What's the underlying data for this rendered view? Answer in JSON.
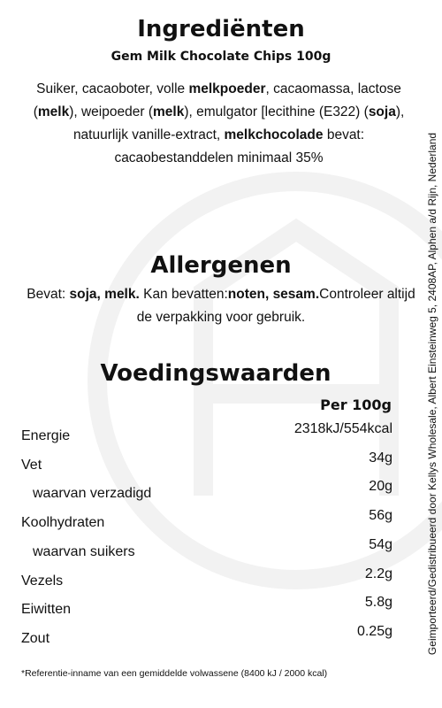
{
  "ingredients": {
    "title": "Ingrediënten",
    "product": "Gem Milk Chocolate Chips 100g",
    "text": [
      {
        "text": "Suiker, cacaoboter, volle ",
        "bold": false
      },
      {
        "text": "melkpoeder",
        "bold": true
      },
      {
        "text": ", cacaomassa, lactose (",
        "bold": false
      },
      {
        "text": "melk",
        "bold": true
      },
      {
        "text": "), weipoeder (",
        "bold": false
      },
      {
        "text": "melk",
        "bold": true
      },
      {
        "text": "), emulgator [lecithine (E322) (",
        "bold": false
      },
      {
        "text": "soja",
        "bold": true
      },
      {
        "text": "), natuurlijk vanille-extract, ",
        "bold": false
      },
      {
        "text": "melkchocolade",
        "bold": true
      },
      {
        "text": " bevat: cacaobestanddelen minimaal 35%",
        "bold": false
      }
    ]
  },
  "allergens": {
    "title": "Allergenen",
    "text": [
      {
        "text": "Bevat: ",
        "bold": false
      },
      {
        "text": "soja, melk.",
        "bold": true
      },
      {
        "text": " Kan bevatten:",
        "bold": false
      },
      {
        "text": "noten, sesam.",
        "bold": true
      },
      {
        "text": "Controleer altijd de verpakking voor gebruik.",
        "bold": false
      }
    ]
  },
  "nutrition": {
    "title": "Voedingswaarden",
    "column_header": "Per 100g",
    "rows": [
      {
        "label": "Energie",
        "value": "2318kJ/554kcal",
        "indent": false
      },
      {
        "label": "Vet",
        "value": "34g",
        "indent": false
      },
      {
        "label": "waarvan verzadigd",
        "value": "20g",
        "indent": true
      },
      {
        "label": "Koolhydraten",
        "value": "56g",
        "indent": false
      },
      {
        "label": "waarvan suikers",
        "value": "54g",
        "indent": true
      },
      {
        "label": "Vezels",
        "value": "2.2g",
        "indent": false
      },
      {
        "label": "Eiwitten",
        "value": "5.8g",
        "indent": false
      },
      {
        "label": "Zout",
        "value": "0.25g",
        "indent": false
      }
    ]
  },
  "footnote": "*Referentie-inname van een gemiddelde volwassene (8400 kJ / 2000 kcal)",
  "side_text": "Geimporteerd/Gedistribueerd door Kellys Wholesale, Albert Einsteinweg 5, 2408AP, Alphen a/d Rijn, Nederland"
}
